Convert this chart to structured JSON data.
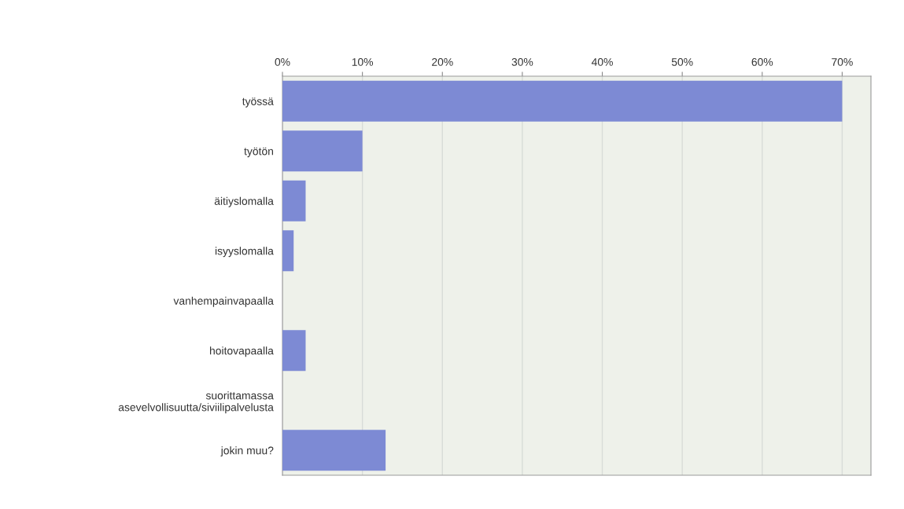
{
  "chart_data": {
    "type": "bar",
    "orientation": "horizontal",
    "categories": [
      "työssä",
      "työtön",
      "äitiyslomalla",
      "isyyslomalla",
      "vanhempainvapaalla",
      "hoitovapaalla",
      "suorittamassa\nasevelvollisuutta/siviilipalvelusta",
      "jokin muu?"
    ],
    "values": [
      70,
      10,
      2.9,
      1.4,
      0,
      2.9,
      0,
      12.9
    ],
    "color": "#7d8ad4",
    "xlim": [
      0,
      73.6
    ],
    "xticks": [
      {
        "value": 0,
        "label": "0%"
      },
      {
        "value": 10,
        "label": "10%"
      },
      {
        "value": 20,
        "label": "20%"
      },
      {
        "value": 30,
        "label": "30%"
      },
      {
        "value": 40,
        "label": "40%"
      },
      {
        "value": 50,
        "label": "50%"
      },
      {
        "value": 60,
        "label": "60%"
      },
      {
        "value": 70,
        "label": "70%"
      }
    ],
    "grid": "x"
  }
}
